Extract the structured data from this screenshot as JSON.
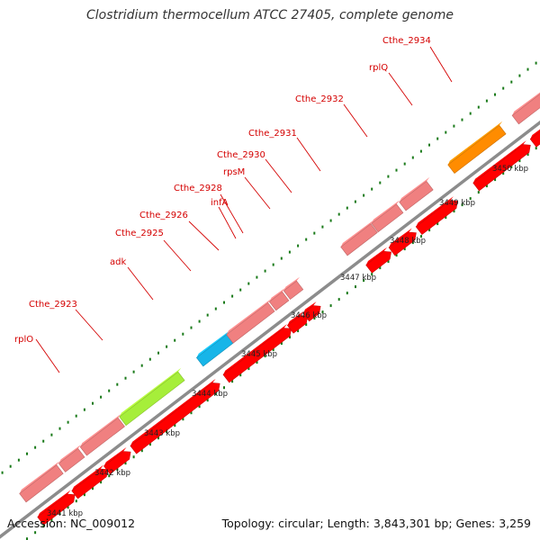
{
  "title": "Clostridium thermocellum ATCC 27405, complete genome",
  "footer": {
    "accession": "Accession: NC_009012",
    "topology": "Topology: circular; Length: 3,843,301 bp; Genes: 3,259"
  },
  "colors": {
    "background": "#ffffff",
    "label": "#d40000",
    "backbone": "#8c8c8c",
    "tick": "#1a7a1a",
    "cds_reverse_strand": "#ff0000",
    "cds_forward_strand": "#f08080",
    "gene_highlight_green": "#a6ee3a",
    "gene_highlight_cyan": "#17b5e8",
    "gene_highlight_orange": "#ff8c00",
    "gene_highlight_navy": "#3b3b8f",
    "gene_highlight_blue": "#1010ee"
  },
  "scale_labels": [
    "3441 kbp",
    "3442 kbp",
    "3443 kbp",
    "3444 kbp",
    "3445 kbp",
    "3446 kbp",
    "3447 kbp",
    "3448 kbp",
    "3449 kbp",
    "3450 kbp"
  ],
  "gene_labels": [
    "rplO",
    "Cthe_2923",
    "adk",
    "Cthe_2925",
    "Cthe_2926",
    "infA",
    "Cthe_2928",
    "rpsM",
    "Cthe_2930",
    "Cthe_2931",
    "Cthe_2932",
    "rplQ",
    "Cthe_2934"
  ]
}
